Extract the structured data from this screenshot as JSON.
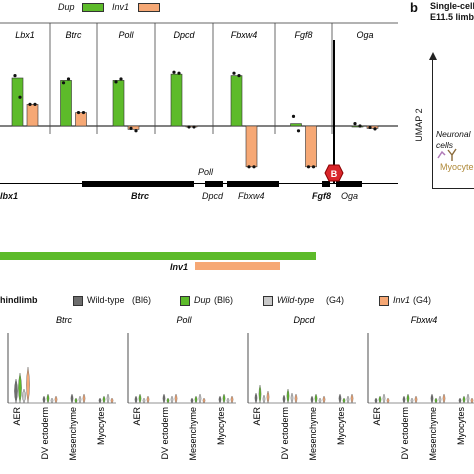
{
  "panel_b": {
    "letter": "b",
    "title_line1": "Single-cell",
    "title_line2": "E11.5 limb",
    "ylabel": "UMAP 2",
    "label_neuronal_1": "Neuronal",
    "label_neuronal_2": "cells",
    "label_myocytes": "Myocyte"
  },
  "legend_top": [
    {
      "name": "Dup",
      "color": "#5dbb2a"
    },
    {
      "name": "Inv1",
      "color": "#f6a875"
    }
  ],
  "genome_track": {
    "labels": [
      "lbx1",
      "Btrc",
      "Poll",
      "Dpcd",
      "Fbxw4",
      "Fgf8",
      "Oga"
    ],
    "breakpoint_label": "B",
    "dup_bar_color": "#5dbb2a",
    "inv_bar_color": "#f6a875",
    "inv_label": "Inv1"
  },
  "legend_bottom": {
    "prefix": "hindlimb",
    "items": [
      {
        "name": "Wild-type",
        "suffix": "(Bl6)",
        "color": "#6d6d6d",
        "italic": false
      },
      {
        "name": "Dup",
        "suffix": "(Bl6)",
        "color": "#5dbb2a",
        "italic": true
      },
      {
        "name": "Wild-type",
        "suffix": "(G4)",
        "color": "#c9c9c9",
        "italic": true
      },
      {
        "name": "Inv1",
        "suffix": "(G4)",
        "color": "#f6a875",
        "italic": true
      }
    ]
  },
  "chart_data": [
    {
      "type": "bar",
      "series_colors": [
        "#5dbb2a",
        "#f6a875"
      ],
      "series": [
        {
          "name": "Dup",
          "values": [
            1.0,
            0.95,
            0.95,
            1.08,
            1.05,
            0.05,
            0.0
          ]
        },
        {
          "name": "Inv1",
          "values": [
            0.45,
            0.28,
            -0.07,
            -0.02,
            -0.85,
            -0.85,
            -0.05
          ]
        }
      ],
      "categories": [
        "Lbx1",
        "Btrc",
        "Poll",
        "Dpcd",
        "Fbxw4",
        "Fgf8",
        "Oga"
      ],
      "ylim": [
        -1.0,
        1.3
      ],
      "points": {
        "Dup": [
          [
            1.05,
            0.6
          ],
          [
            0.9,
            0.98
          ],
          [
            0.92,
            0.98
          ],
          [
            1.12,
            1.1
          ],
          [
            1.1,
            1.05
          ],
          [
            0.2,
            -0.1
          ],
          [
            0.05,
            0.0
          ]
        ],
        "Inv1": [
          [
            0.45,
            0.45
          ],
          [
            0.28,
            0.28
          ],
          [
            -0.05,
            -0.1
          ],
          [
            -0.02,
            -0.02
          ],
          [
            -0.85,
            -0.85
          ],
          [
            -0.85,
            -0.85
          ],
          [
            -0.03,
            -0.06
          ]
        ]
      }
    },
    {
      "type": "violin",
      "groups": [
        "Btrc",
        "Poll",
        "Dpcd",
        "Fbxw4"
      ],
      "cell_types": [
        "AER",
        "DV ectoderm",
        "Mesenchyme",
        "Myocytes"
      ],
      "series": [
        {
          "name": "Wild-type (Bl6)",
          "color": "#6d6d6d"
        },
        {
          "name": "Dup (Bl6)",
          "color": "#5dbb2a"
        },
        {
          "name": "Wild-type (G4)",
          "color": "#c9c9c9"
        },
        {
          "name": "Inv1 (G4)",
          "color": "#f6a875"
        }
      ]
    }
  ]
}
